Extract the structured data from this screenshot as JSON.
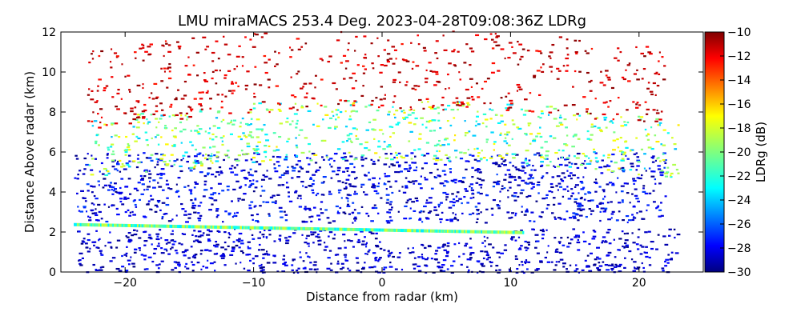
{
  "chart_data": {
    "type": "heatmap",
    "title": "LMU miraMACS 253.4 Deg. 2023-04-28T09:08:36Z  LDRg",
    "xlabel": "Distance from radar (km)",
    "ylabel": "Distance Above radar  (km)",
    "xlim": [
      -25,
      25
    ],
    "ylim": [
      0,
      12
    ],
    "x_ticks": [
      -20,
      -10,
      0,
      10,
      20
    ],
    "y_ticks": [
      0,
      2,
      4,
      6,
      8,
      10,
      12
    ],
    "grid": false,
    "colorbar": {
      "label": "LDRg (dB)",
      "range": [
        -30,
        -10
      ],
      "ticks": [
        -30,
        -28,
        -26,
        -24,
        -22,
        -20,
        -18,
        -16,
        -14,
        -12,
        -10
      ],
      "colormap": "jet"
    },
    "layers": [
      {
        "name": "boundary-layer",
        "x_range": [
          -24,
          23
        ],
        "height_range": [
          0,
          2.2
        ],
        "ldr_range": [
          -30,
          -27
        ],
        "density": 0.85
      },
      {
        "name": "melting-band",
        "x_range": [
          -24,
          11
        ],
        "height_km": [
          2.3,
          1.9
        ],
        "ldr_range": [
          -23,
          -18
        ]
      },
      {
        "name": "lower-cloud",
        "x_range": [
          -24,
          22
        ],
        "height_range": [
          2.5,
          6.0
        ],
        "ldr_range": [
          -30,
          -26
        ],
        "density": 0.8
      },
      {
        "name": "mid-cloud",
        "x_range": [
          -23,
          23
        ],
        "height_range": [
          5.5,
          8.5
        ],
        "ldr_range": [
          -24,
          -17
        ],
        "density": 0.55
      },
      {
        "name": "cloud-top",
        "x_range": [
          -23,
          22
        ],
        "height_range": [
          8.0,
          12.0
        ],
        "ldr_range": [
          -13,
          -10
        ],
        "density": 0.35
      }
    ]
  }
}
